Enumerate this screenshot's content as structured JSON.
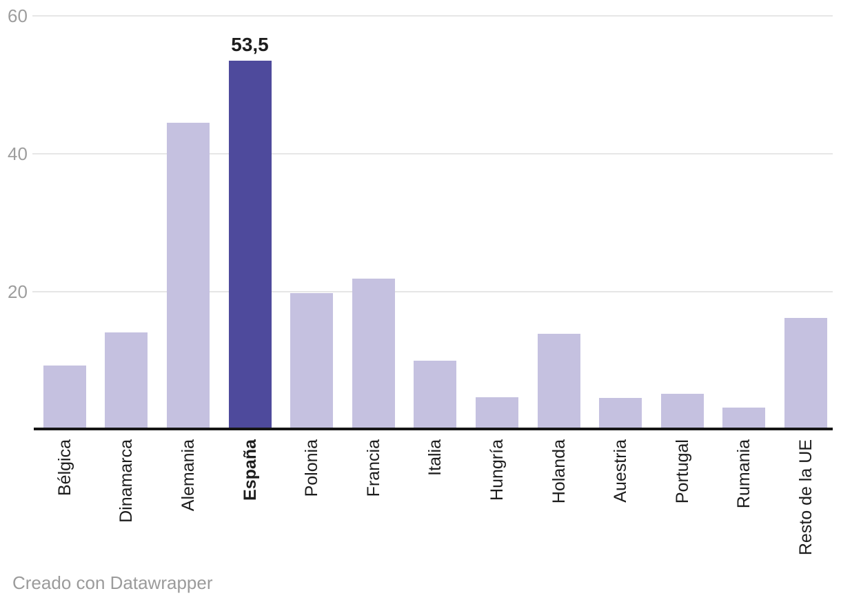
{
  "chart_data": {
    "type": "bar",
    "title": "",
    "xlabel": "",
    "ylabel": "",
    "categories": [
      "Bélgica",
      "Dinamarca",
      "Alemania",
      "España",
      "Polonia",
      "Francia",
      "Italia",
      "Hungría",
      "Holanda",
      "Auestria",
      "Portugal",
      "Rumania",
      "Resto de la UE"
    ],
    "values": [
      9.3,
      14.1,
      44.5,
      53.5,
      19.8,
      21.9,
      10.0,
      4.7,
      13.9,
      4.6,
      5.2,
      3.2,
      16.2
    ],
    "highlight": {
      "category": "España",
      "index": 3,
      "value_label": "53,5"
    },
    "yticks": [
      20,
      40,
      60
    ],
    "ylim": [
      0,
      60
    ],
    "grid": true,
    "legend_position": "none",
    "colors": {
      "bar": "#c5c1e0",
      "highlight_bar": "#4e4a9c",
      "gridline": "#e6e6e6",
      "axis_line": "#161616",
      "tick_label": "#9d9d9d",
      "category_label": "#1d1d1d",
      "value_label": "#1d1d1d",
      "footer": "#9b9b9b"
    }
  },
  "footer": {
    "attribution": "Creado con Datawrapper"
  }
}
